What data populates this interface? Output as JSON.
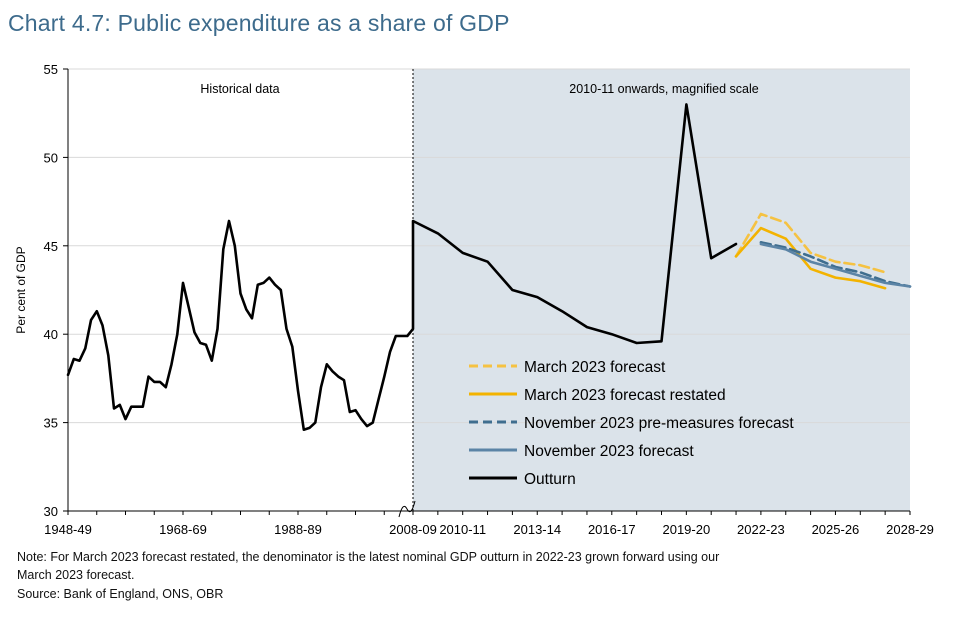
{
  "title": "Chart 4.7: Public expenditure as a share of GDP",
  "notes": {
    "line1": "Note: For March 2023 forecast restated, the denominator is the latest nominal GDP outturn in 2022-23 grown forward using our",
    "line2": "March 2023 forecast.",
    "source": "Source: Bank of England, ONS, OBR"
  },
  "colors": {
    "outturn": "#000000",
    "march": "#f5c242",
    "march_restated": "#f3b300",
    "nov_pre": "#3f6e8f",
    "nov": "#5b84a6",
    "shade": "#dbe3ea"
  },
  "chart_data": {
    "type": "line",
    "ylabel": "Per cent of GDP",
    "ylim": [
      30,
      55
    ],
    "yticks": [
      30,
      35,
      40,
      45,
      50,
      55
    ],
    "grid": true,
    "legend_position": "bottom-left of shaded panel",
    "xticks_left": [
      "1948-49",
      "1968-69",
      "1988-89",
      "2008-09"
    ],
    "xticks_right": [
      "2010-11",
      "2013-14",
      "2016-17",
      "2019-20",
      "2022-23",
      "2025-26",
      "2028-29"
    ],
    "annotations": {
      "historical": "Historical data",
      "magnified": "2010-11 onwards, magnified scale"
    },
    "series": [
      {
        "name": "Outturn",
        "historical_years": [
          1948,
          1949,
          1950,
          1951,
          1952,
          1953,
          1954,
          1955,
          1956,
          1957,
          1958,
          1959,
          1960,
          1961,
          1962,
          1963,
          1964,
          1965,
          1966,
          1967,
          1968,
          1969,
          1970,
          1971,
          1972,
          1973,
          1974,
          1975,
          1976,
          1977,
          1978,
          1979,
          1980,
          1981,
          1982,
          1983,
          1984,
          1985,
          1986,
          1987,
          1988,
          1989,
          1990,
          1991,
          1992,
          1993,
          1994,
          1995,
          1996,
          1997,
          1998,
          1999,
          2000,
          2001,
          2002,
          2003,
          2004,
          2005,
          2006,
          2007,
          2008
        ],
        "historical_values": [
          37.7,
          38.6,
          38.5,
          39.2,
          40.8,
          41.3,
          40.5,
          38.8,
          35.8,
          36.0,
          35.2,
          35.9,
          35.9,
          35.9,
          37.6,
          37.3,
          37.3,
          37.0,
          38.3,
          40.0,
          42.9,
          41.5,
          40.1,
          39.5,
          39.4,
          38.5,
          40.3,
          44.8,
          46.4,
          45.0,
          42.3,
          41.4,
          40.9,
          42.8,
          42.9,
          43.2,
          42.8,
          42.5,
          40.3,
          39.3,
          36.8,
          34.6,
          34.7,
          35.0,
          37.0,
          38.3,
          37.9,
          37.6,
          37.4,
          35.6,
          35.7,
          35.2,
          34.8,
          35.0,
          36.3,
          37.6,
          39.0,
          39.9,
          39.9,
          39.9,
          40.3
        ],
        "years": [
          "2008-09",
          "2009-10",
          "2010-11",
          "2011-12",
          "2012-13",
          "2013-14",
          "2014-15",
          "2015-16",
          "2016-17",
          "2017-18",
          "2018-19",
          "2019-20",
          "2020-21",
          "2021-22"
        ],
        "values": [
          46.4,
          45.7,
          44.6,
          44.1,
          42.5,
          42.1,
          41.3,
          40.4,
          40.0,
          39.5,
          39.6,
          53.0,
          44.3,
          45.1
        ]
      },
      {
        "name": "March 2023 forecast",
        "years": [
          "2021-22",
          "2022-23",
          "2023-24",
          "2024-25",
          "2025-26",
          "2026-27",
          "2027-28"
        ],
        "values": [
          44.4,
          46.8,
          46.3,
          44.6,
          44.1,
          43.9,
          43.5
        ]
      },
      {
        "name": "March 2023 forecast restated",
        "years": [
          "2021-22",
          "2022-23",
          "2023-24",
          "2024-25",
          "2025-26",
          "2026-27",
          "2027-28"
        ],
        "values": [
          44.4,
          46.0,
          45.4,
          43.7,
          43.2,
          43.0,
          42.6
        ]
      },
      {
        "name": "November 2023 pre-measures forecast",
        "years": [
          "2022-23",
          "2023-24",
          "2024-25",
          "2025-26",
          "2026-27",
          "2027-28",
          "2028-29"
        ],
        "values": [
          45.2,
          44.9,
          44.4,
          43.8,
          43.5,
          43.0,
          42.7
        ]
      },
      {
        "name": "November 2023 forecast",
        "years": [
          "2022-23",
          "2023-24",
          "2024-25",
          "2025-26",
          "2026-27",
          "2027-28",
          "2028-29"
        ],
        "values": [
          45.1,
          44.8,
          44.1,
          43.7,
          43.3,
          42.9,
          42.7
        ]
      }
    ]
  }
}
